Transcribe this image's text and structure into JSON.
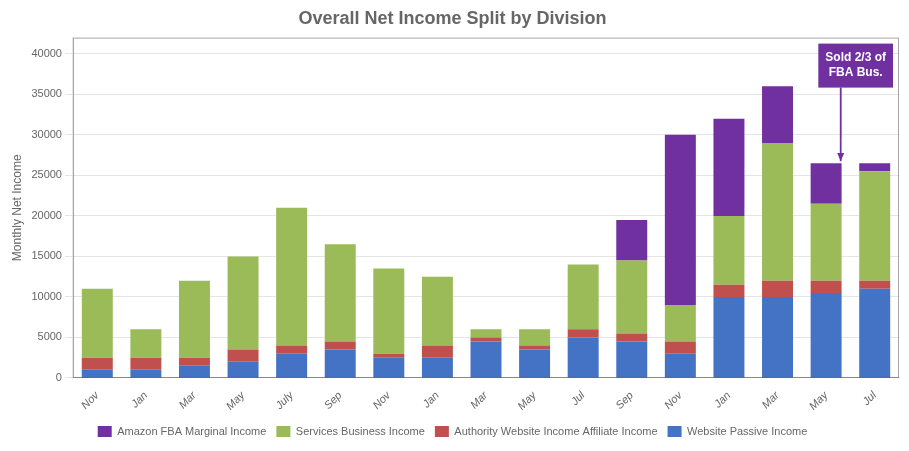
{
  "chart_data": {
    "type": "bar",
    "title": "Overall Net Income Split by Division",
    "ylabel": "Monthly Net Income",
    "categories": [
      "Nov",
      "Jan",
      "Mar",
      "May",
      "July",
      "Sep",
      "Nov",
      "Jan",
      "Mar",
      "May",
      "Jul",
      "Sep",
      "Nov",
      "Jan",
      "Mar",
      "May",
      "Jul"
    ],
    "series": [
      {
        "name": "Website Passive Income",
        "color": "#4472C4",
        "values": [
          1000,
          1000,
          1500,
          2000,
          3000,
          3500,
          2500,
          2500,
          4500,
          3500,
          5000,
          4500,
          3000,
          10000,
          10000,
          10500,
          11000
        ]
      },
      {
        "name": "Authority Website Income Affiliate Income",
        "color": "#C0504D",
        "values": [
          1500,
          1500,
          1000,
          1500,
          1000,
          1000,
          500,
          1500,
          500,
          500,
          1000,
          1000,
          1500,
          1500,
          2000,
          1500,
          1000
        ]
      },
      {
        "name": "Services Business Income",
        "color": "#9BBB59",
        "values": [
          8500,
          3500,
          9500,
          11500,
          17000,
          12000,
          10500,
          8500,
          1000,
          2000,
          8000,
          9000,
          4500,
          8500,
          17000,
          9500,
          13500
        ]
      },
      {
        "name": "Amazon FBA Marginal Income",
        "color": "#7030A0",
        "values": [
          0,
          0,
          0,
          0,
          0,
          0,
          0,
          0,
          0,
          0,
          0,
          5000,
          21000,
          12000,
          7000,
          5000,
          1000
        ]
      }
    ],
    "stacked": true,
    "ylim": [
      0,
      42000
    ],
    "yticks": [
      0,
      5000,
      10000,
      15000,
      20000,
      25000,
      30000,
      35000,
      40000
    ],
    "grid": true,
    "legend": "bottom",
    "annotations": [
      {
        "text": "Sold 2/3 of\nFBA Bus.",
        "x": 15.3,
        "y": 26500
      }
    ]
  }
}
